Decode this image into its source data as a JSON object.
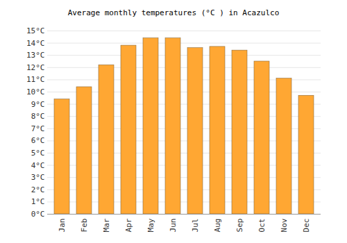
{
  "chart_data": {
    "type": "bar",
    "title": "Average monthly temperatures (°C ) in Acazulco",
    "categories": [
      "Jan",
      "Feb",
      "Mar",
      "Apr",
      "May",
      "Jun",
      "Jul",
      "Aug",
      "Sep",
      "Oct",
      "Nov",
      "Dec"
    ],
    "values": [
      9.4,
      10.4,
      12.2,
      13.8,
      14.4,
      14.4,
      13.6,
      13.7,
      13.4,
      12.5,
      11.1,
      9.7
    ],
    "color": "#ffa733",
    "ylim": [
      0,
      15
    ],
    "yticks": [
      {
        "value": 0,
        "label": "0°C"
      },
      {
        "value": 1,
        "label": "1°C"
      },
      {
        "value": 2,
        "label": "2°C"
      },
      {
        "value": 3,
        "label": "3°C"
      },
      {
        "value": 4,
        "label": "4°C"
      },
      {
        "value": 5,
        "label": "5°C"
      },
      {
        "value": 6,
        "label": "6°C"
      },
      {
        "value": 7,
        "label": "7°C"
      },
      {
        "value": 8,
        "label": "8°C"
      },
      {
        "value": 9,
        "label": "9°C"
      },
      {
        "value": 10,
        "label": "10°C"
      },
      {
        "value": 11,
        "label": "11°C"
      },
      {
        "value": 12,
        "label": "12°C"
      },
      {
        "value": 13,
        "label": "13°C"
      },
      {
        "value": 14,
        "label": "14°C"
      },
      {
        "value": 15,
        "label": "15°C"
      }
    ],
    "grid": true
  }
}
